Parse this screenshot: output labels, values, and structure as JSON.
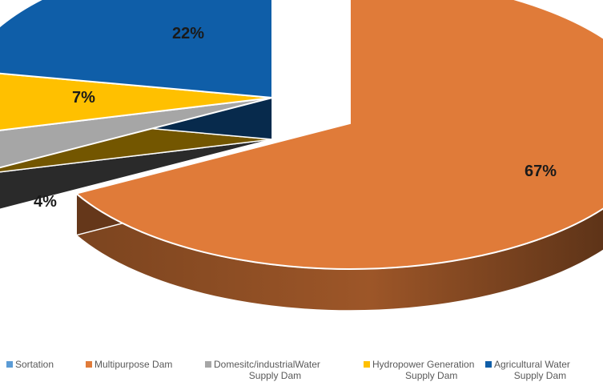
{
  "chart_data": {
    "type": "pie",
    "style": "3d-exploded",
    "categories": [
      "Sortation",
      "Multipurpose Dam",
      "Domesitc/industrialWater Supply Dam",
      "Hydropower Generation Supply Dam",
      "Agricultural Water Supply Dam"
    ],
    "values": [
      0,
      67,
      4,
      7,
      22
    ],
    "data_labels": [
      "",
      "67%",
      "4%",
      "7%",
      "22%"
    ],
    "colors": [
      "#5B9BD5",
      "#E07B39",
      "#A6A6A6",
      "#FFC000",
      "#0F5EA8"
    ],
    "legend_position": "bottom",
    "legend_lines": [
      [
        "Sortation"
      ],
      [
        "Multipurpose Dam"
      ],
      [
        "Domesitc/industrialWater",
        "Supply Dam"
      ],
      [
        "Hydropower Generation",
        "Supply Dam"
      ],
      [
        "Agricultural Water",
        "Supply Dam"
      ]
    ]
  }
}
